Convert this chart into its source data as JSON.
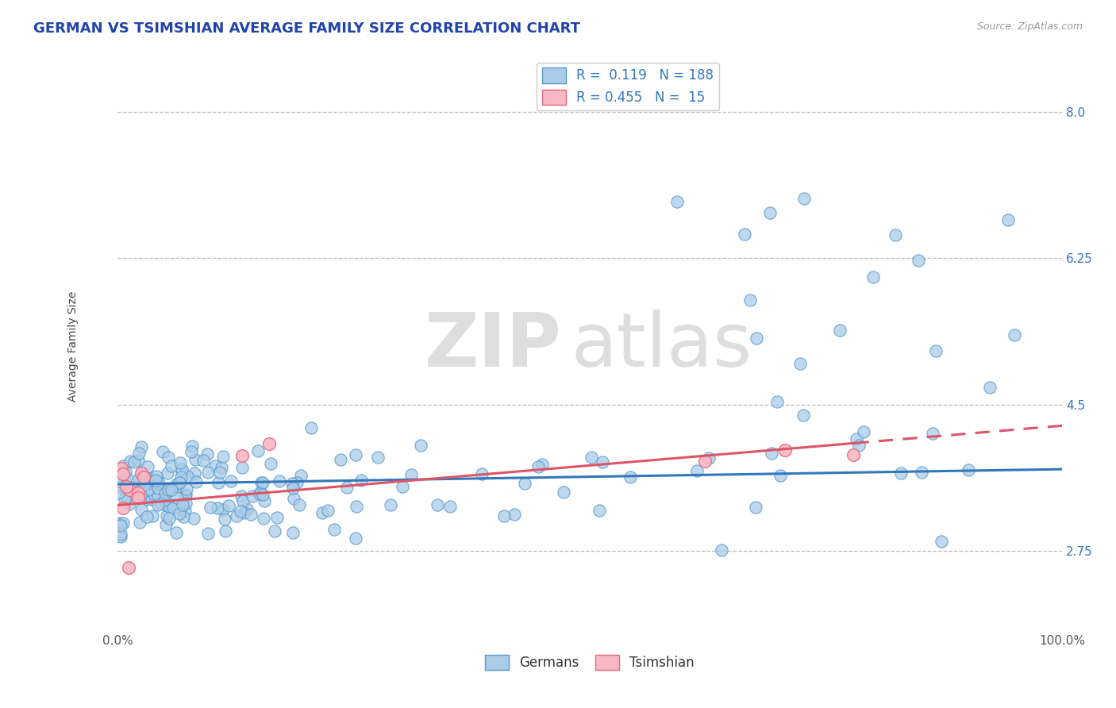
{
  "title": "GERMAN VS TSIMSHIAN AVERAGE FAMILY SIZE CORRELATION CHART",
  "source_text": "Source: ZipAtlas.com",
  "ylabel": "Average Family Size",
  "xlim": [
    0.0,
    1.0
  ],
  "ylim": [
    1.8,
    8.6
  ],
  "yticks": [
    2.75,
    4.5,
    6.25,
    8.0
  ],
  "xticklabels": [
    "0.0%",
    "100.0%"
  ],
  "watermark_zip": "ZIP",
  "watermark_atlas": "atlas",
  "german_color": "#aacce8",
  "german_edge_color": "#5599cc",
  "tsimshian_color": "#f8b8c4",
  "tsimshian_edge_color": "#e86880",
  "trend_german_color": "#3377bb",
  "trend_tsimshian_color": "#dd5566",
  "legend_R_german": "0.119",
  "legend_N_german": "188",
  "legend_R_tsimshian": "0.455",
  "legend_N_tsimshian": "15",
  "title_fontsize": 13,
  "axis_label_fontsize": 10,
  "tick_fontsize": 11,
  "legend_fontsize": 12,
  "background_color": "#ffffff",
  "grid_color": "#bbbbbb",
  "ytick_color": "#3377bb",
  "title_color": "#2244aa",
  "source_color": "#999999",
  "seed": 7
}
